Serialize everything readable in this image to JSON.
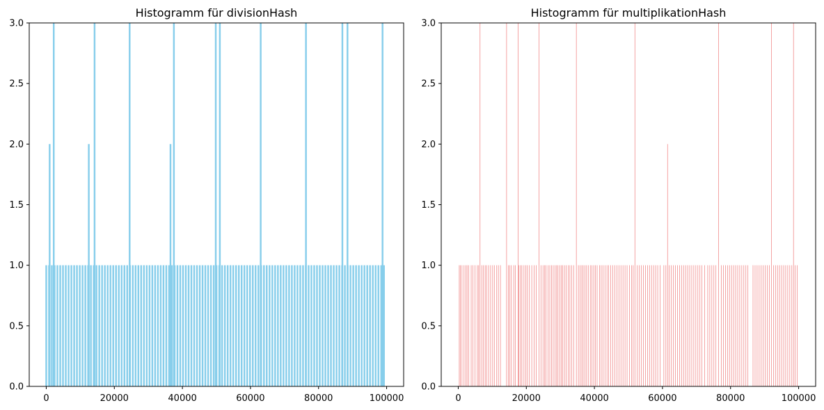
{
  "chart_data": [
    {
      "type": "bar",
      "title": "Histogramm für divisionHash",
      "color": "#87ceeb",
      "xlim": [
        -5000,
        105000
      ],
      "ylim": [
        0,
        3.0
      ],
      "xticks": [
        0,
        20000,
        40000,
        60000,
        80000,
        100000
      ],
      "xtick_labels": [
        "0",
        "20000",
        "40000",
        "60000",
        "80000",
        "100000"
      ],
      "yticks": [
        0.0,
        0.5,
        1.0,
        1.5,
        2.0,
        2.5,
        3.0
      ],
      "ytick_labels": [
        "0.0",
        "0.5",
        "1.0",
        "1.5",
        "2.0",
        "2.5",
        "3.0"
      ],
      "bar_width": 500,
      "baseline": {
        "start": 0,
        "end": 100000,
        "step": 820,
        "value": 1
      },
      "peaks": [
        {
          "x": 1000,
          "value": 2
        },
        {
          "x": 2200,
          "value": 3
        },
        {
          "x": 12500,
          "value": 2
        },
        {
          "x": 14200,
          "value": 3
        },
        {
          "x": 24500,
          "value": 3
        },
        {
          "x": 36500,
          "value": 2
        },
        {
          "x": 37500,
          "value": 3
        },
        {
          "x": 49800,
          "value": 3
        },
        {
          "x": 51000,
          "value": 3
        },
        {
          "x": 63000,
          "value": 3
        },
        {
          "x": 76300,
          "value": 3
        },
        {
          "x": 87000,
          "value": 3
        },
        {
          "x": 88500,
          "value": 3
        },
        {
          "x": 98800,
          "value": 3
        }
      ]
    },
    {
      "type": "bar",
      "title": "Histogramm für multiplikationHash",
      "color": "#f08080",
      "xlim": [
        -5000,
        105000
      ],
      "ylim": [
        0,
        3.0
      ],
      "xticks": [
        0,
        20000,
        40000,
        60000,
        80000,
        100000
      ],
      "xtick_labels": [
        "0",
        "20000",
        "40000",
        "60000",
        "80000",
        "100000"
      ],
      "yticks": [
        0.0,
        0.5,
        1.0,
        1.5,
        2.0,
        2.5,
        3.0
      ],
      "ytick_labels": [
        "0.0",
        "0.5",
        "1.0",
        "1.5",
        "2.0",
        "2.5",
        "3.0"
      ],
      "bar_width": 150,
      "ones": [
        300,
        600,
        1100,
        1700,
        2200,
        2600,
        3100,
        3800,
        4300,
        4900,
        5600,
        6000,
        6900,
        7400,
        7900,
        8300,
        8900,
        9500,
        10100,
        10600,
        11300,
        11800,
        12400,
        14700,
        15100,
        15600,
        16300,
        16800,
        17800,
        18300,
        18700,
        19300,
        19800,
        20300,
        20900,
        21600,
        22300,
        22900,
        24300,
        24900,
        25400,
        25800,
        26400,
        26900,
        27400,
        27900,
        28400,
        28900,
        29300,
        29800,
        30300,
        30700,
        31200,
        31700,
        32300,
        32800,
        33300,
        33900,
        35300,
        35800,
        36300,
        36700,
        37200,
        37700,
        38200,
        38800,
        39300,
        39800,
        40300,
        40800,
        41500,
        42000,
        42500,
        43100,
        43700,
        44200,
        44800,
        45400,
        46000,
        46600,
        47200,
        47800,
        48400,
        49000,
        49600,
        50300,
        50900,
        51400,
        52600,
        53200,
        53800,
        54400,
        55000,
        55600,
        56200,
        56800,
        57400,
        58000,
        58600,
        59300,
        60400,
        61000,
        62000,
        62600,
        63200,
        63800,
        64400,
        65000,
        65600,
        66200,
        66800,
        67400,
        68000,
        68600,
        69200,
        69800,
        70400,
        71000,
        71600,
        72400,
        73300,
        73900,
        74500,
        75100,
        75700,
        77300,
        77900,
        78500,
        79100,
        79700,
        80300,
        80900,
        81500,
        82100,
        82700,
        83300,
        83900,
        84500,
        85100,
        86600,
        87200,
        87800,
        88400,
        89000,
        89600,
        90200,
        90800,
        91400,
        92600,
        93200,
        93800,
        94400,
        95000,
        95600,
        96200,
        96800,
        97400,
        98000,
        99000,
        99600
      ],
      "peaks": [
        {
          "x": 6400,
          "value": 3
        },
        {
          "x": 14200,
          "value": 3
        },
        {
          "x": 17600,
          "value": 3
        },
        {
          "x": 23700,
          "value": 3
        },
        {
          "x": 34700,
          "value": 3
        },
        {
          "x": 51900,
          "value": 3
        },
        {
          "x": 61500,
          "value": 2
        },
        {
          "x": 76500,
          "value": 3
        },
        {
          "x": 92000,
          "value": 3
        },
        {
          "x": 98500,
          "value": 3
        }
      ]
    }
  ]
}
